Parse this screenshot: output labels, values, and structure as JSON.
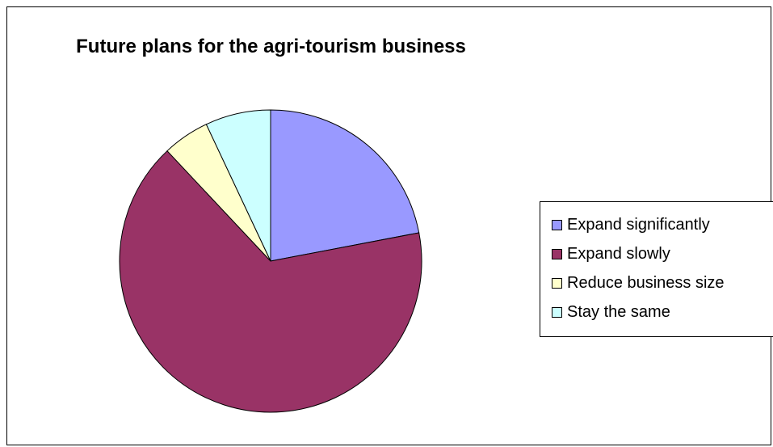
{
  "chart_data": {
    "type": "pie",
    "title": "Future plans for the agri-tourism business",
    "categories": [
      "Expand significantly",
      "Expand slowly",
      "Reduce business size",
      "Stay the same"
    ],
    "values": [
      22,
      66,
      5,
      7
    ],
    "colors": [
      "#9999ff",
      "#993366",
      "#ffffcc",
      "#ccffff"
    ],
    "start_angle_deg": 0,
    "direction": "clockwise",
    "legend_position": "right"
  }
}
